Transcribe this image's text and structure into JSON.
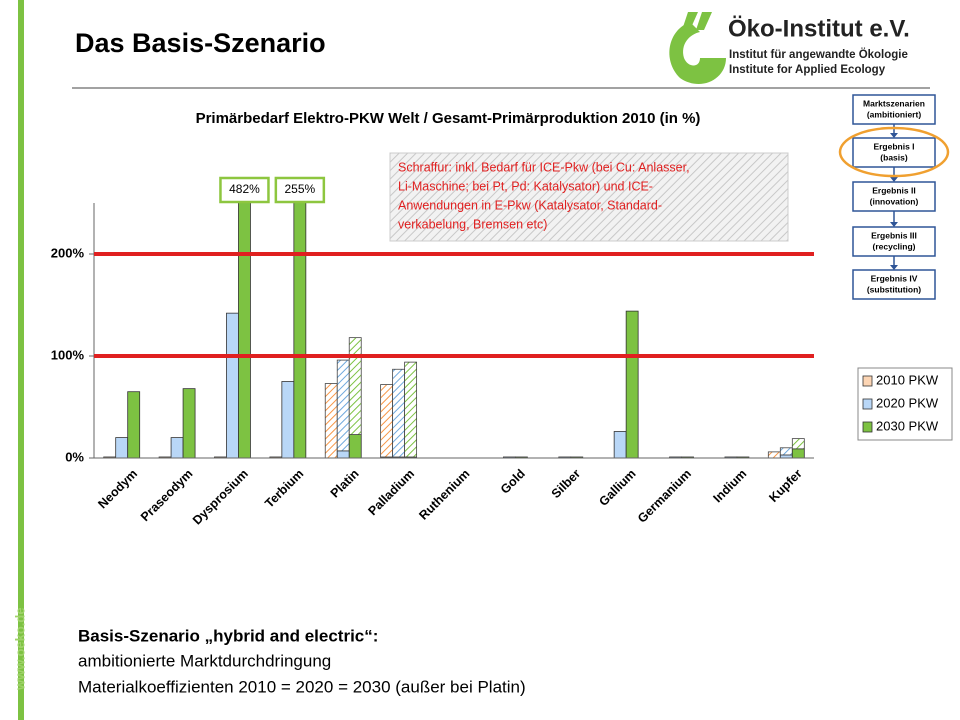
{
  "slide": {
    "title": "Das Basis-Szenario",
    "logo": {
      "name": "Öko-Institut e.V.",
      "line1": "Institut für angewandte Ökologie",
      "line2": "Institute for Applied Ecology"
    },
    "url": "www.oeko.de",
    "flow": [
      {
        "title": "Marktszenarien",
        "sub": "(ambitioniert)"
      },
      {
        "title": "Ergebnis I",
        "sub": "(basis)"
      },
      {
        "title": "Ergebnis II",
        "sub": "(innovation)"
      },
      {
        "title": "Ergebnis III",
        "sub": "(recycling)"
      },
      {
        "title": "Ergebnis IV",
        "sub": "(substitution)"
      }
    ],
    "footer": [
      "Basis-Szenario „hybrid and electric“:",
      "ambitionierte Marktdurchdringung",
      "Materialkoeffizienten 2010 = 2020 = 2030 (außer bei Platin)"
    ]
  },
  "chart_data": {
    "type": "bar",
    "title": "Primärbedarf Elektro-PKW Welt / Gesamt-Primärproduktion 2010 (in %)",
    "note": [
      "Schraffur: inkl. Bedarf für ICE-Pkw (bei Cu: Anlasser,",
      "Li-Maschine; bei Pt, Pd: Katalysator) und ICE-",
      "Anwendungen in E-Pkw (Katalysator, Standard-",
      "verkabelung, Bremsen etc)"
    ],
    "categories": [
      "Neodym",
      "Praseodym",
      "Dysprosium",
      "Terbium",
      "Platin",
      "Palladium",
      "Ruthenium",
      "Gold",
      "Silber",
      "Gallium",
      "Germanium",
      "Indium",
      "Kupfer"
    ],
    "series": [
      {
        "name": "2010 PKW",
        "color": "#fcd5b4",
        "hatch_color": "#f79646",
        "values": [
          1,
          1,
          1,
          1,
          0,
          1,
          0,
          0,
          0,
          0,
          0,
          0,
          0
        ],
        "hatched_values": [
          0,
          0,
          0,
          0,
          73,
          71,
          0,
          0,
          0,
          0,
          0,
          0,
          6
        ]
      },
      {
        "name": "2020 PKW",
        "color": "#b9d7f7",
        "hatch_color": "#6fa8dc",
        "values": [
          20,
          20,
          142,
          75,
          7,
          1,
          0,
          1,
          1,
          26,
          1,
          1,
          3
        ],
        "hatched_values": [
          0,
          0,
          0,
          0,
          89,
          86,
          0,
          0,
          0,
          0,
          0,
          0,
          7
        ]
      },
      {
        "name": "2030 PKW",
        "color": "#7dc242",
        "hatch_color": "#7dc242",
        "values": [
          65,
          68,
          482,
          255,
          23,
          1,
          0,
          1,
          1,
          144,
          1,
          1,
          9
        ],
        "hatched_values": [
          0,
          0,
          0,
          0,
          95,
          93,
          0,
          0,
          0,
          0,
          0,
          0,
          10
        ],
        "value_labels": [
          null,
          null,
          "482%",
          "255%",
          null,
          null,
          null,
          null,
          null,
          null,
          null,
          null,
          null
        ]
      }
    ],
    "ylim": [
      0,
      250
    ],
    "yticks": [
      {
        "value": 0,
        "label": "0%"
      },
      {
        "value": 100,
        "label": "100%"
      },
      {
        "value": 200,
        "label": "200%"
      }
    ],
    "reference_lines": {
      "values": [
        100,
        200
      ],
      "color": "#e02020"
    }
  }
}
